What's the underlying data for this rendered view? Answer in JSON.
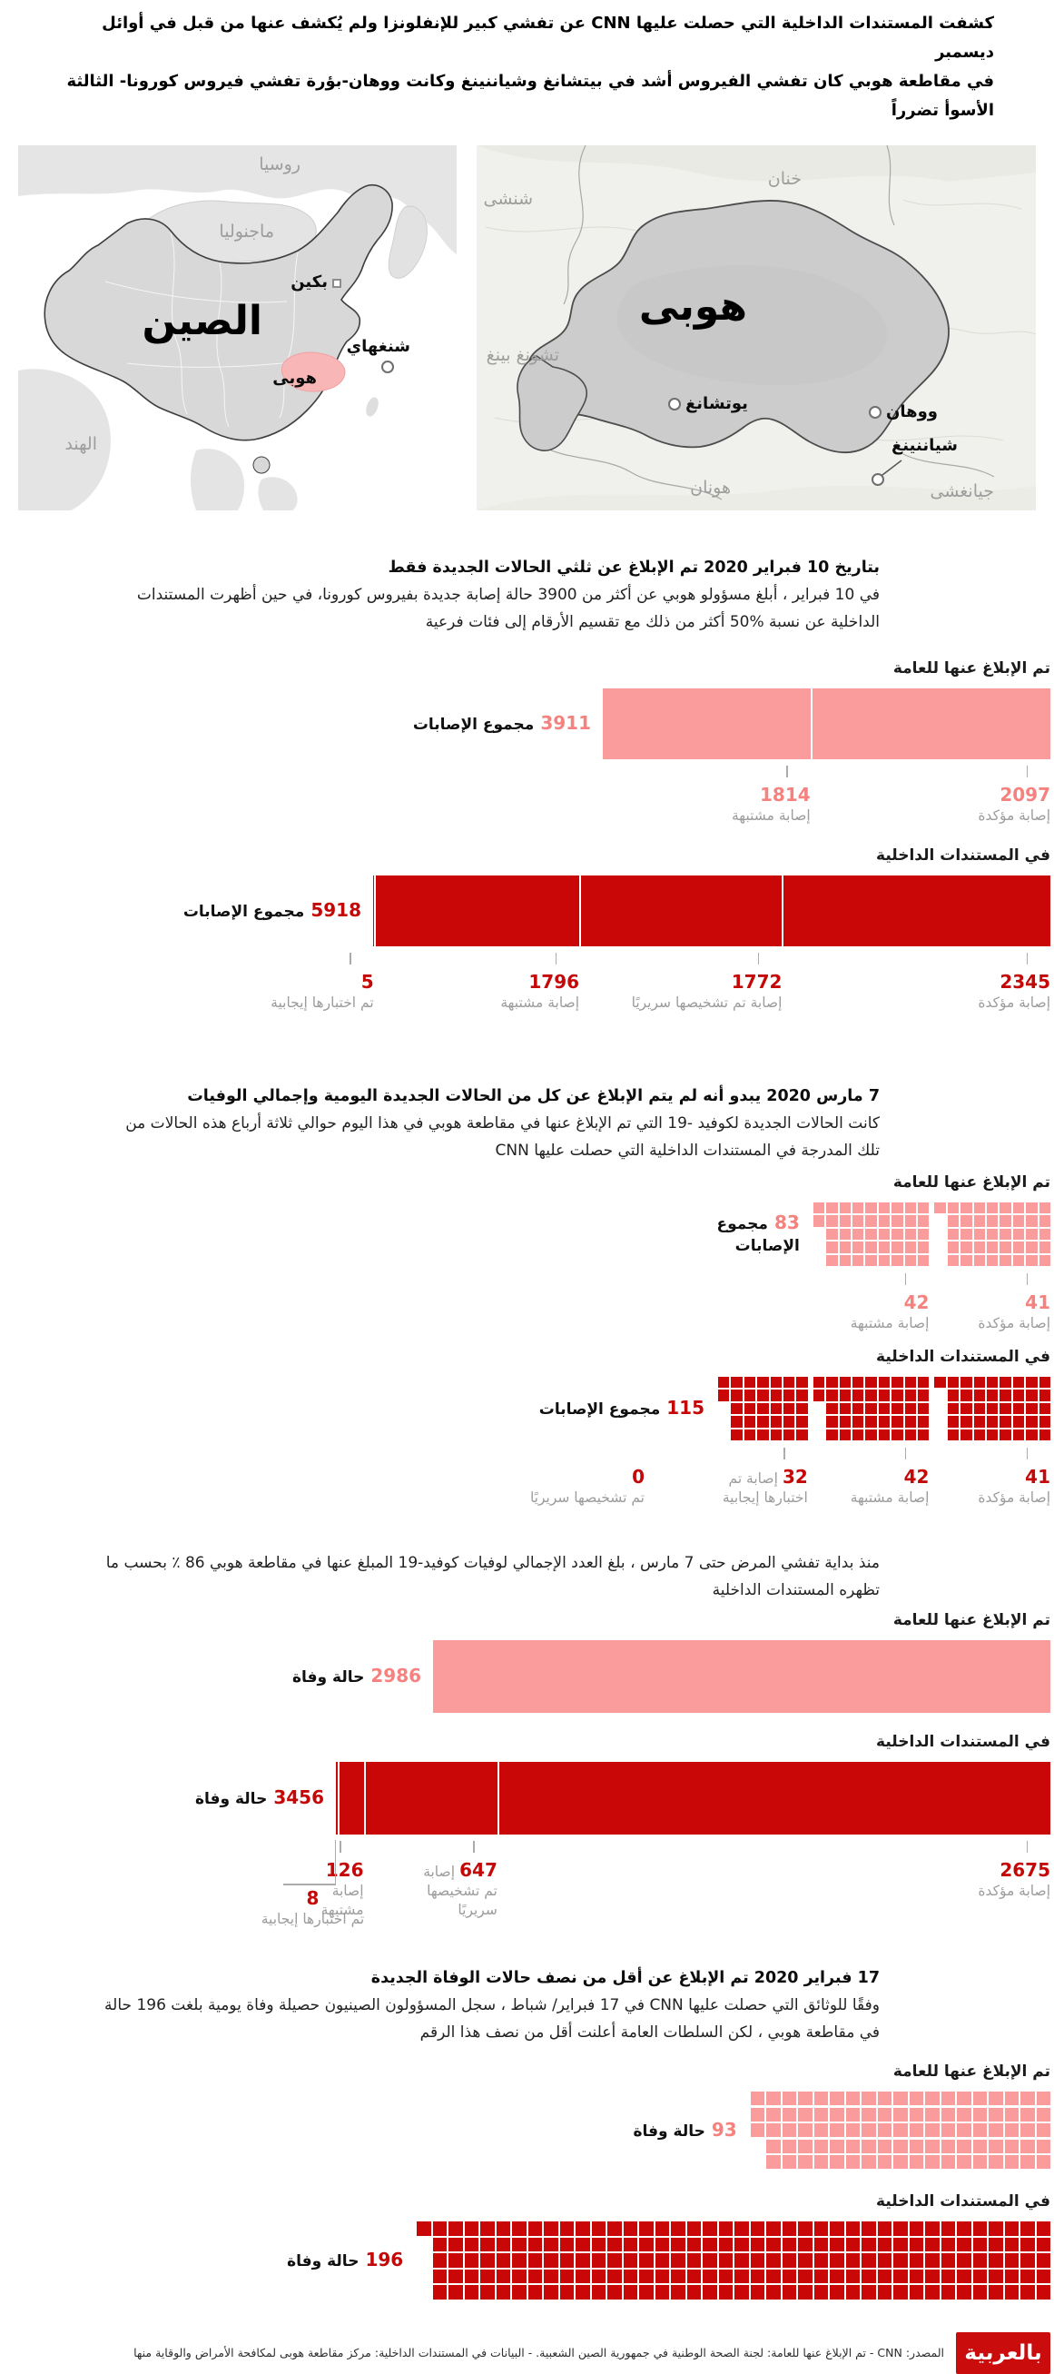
{
  "header": {
    "line1": "كشفت المستندات الداخلية التي حصلت عليها CNN عن تفشي كبير للإنفلونزا ولم يُكشف عنها من قبل في أوائل ديسمبر",
    "line2": "في مقاطعة هوبي كان تفشي الفيروس أشد في بيتشانغ وشياننينغ وكانت ووهان-بؤرة تفشي فيروس كورونا- الثالثة الأسوأ تضرراً"
  },
  "maps": {
    "china": {
      "title": "الصين",
      "region_label": "هوبى",
      "countries": [
        {
          "name": "روسيا"
        },
        {
          "name": "ماجنوليا"
        },
        {
          "name": "الهند"
        }
      ],
      "cities": [
        {
          "name": "بكين"
        },
        {
          "name": "شنغهاي"
        }
      ]
    },
    "hubei": {
      "title": "هوبى",
      "neighbors": [
        {
          "name": "شنشى"
        },
        {
          "name": "خنان"
        },
        {
          "name": "تشونغ بينغ"
        },
        {
          "name": "هونان"
        },
        {
          "name": "جيانغشى"
        }
      ],
      "cities": [
        {
          "name": "يوتشانغ"
        },
        {
          "name": "ووهان"
        },
        {
          "name": "شياننينغ"
        }
      ]
    }
  },
  "sections": [
    {
      "heading": "بتاريخ 10 فبراير 2020 تم الإبلاغ عن ثلثي الحالات الجديدة فقط",
      "body": "في 10 فبراير ، أبلغ مسؤولو هوبي عن أكثر من 3900 حالة إصابة جديدة بفيروس كورونا، في حين أظهرت المستندات الداخلية عن نسبة %50 أكثر من ذلك مع تقسيم الأرقام إلى فئات فرعية"
    },
    {
      "heading": "7 مارس 2020 يبدو أنه لم يتم الإبلاغ عن كل من الحالات الجديدة اليومية وإجمالي الوفيات",
      "body": "كانت الحالات الجديدة لكوفيد -19 التي تم الإبلاغ عنها في مقاطعة هوبي في هذا اليوم حوالي ثلاثة أرباع هذه الحالات من تلك المدرجة في المستندات الداخلية التي حصلت عليها CNN"
    },
    {
      "heading": "",
      "body": "منذ بداية تفشي المرض حتى 7 مارس ، بلغ العدد الإجمالي لوفيات كوفيد-19 المبلغ عنها في مقاطعة هوبي 86 ٪ بحسب ما تظهره المستندات الداخلية"
    },
    {
      "heading": "17 فبراير 2020 تم الإبلاغ عن أقل من نصف حالات الوفاة الجديدة",
      "body": "وفقًا للوثائق التي حصلت عليها CNN في 17 فبراير/ شباط ، سجل المسؤولون الصينيون حصيلة وفاة يومية بلغت 196 حالة في مقاطعة هوبي ، لكن السلطات العامة أعلنت أقل من نصف هذا الرقم"
    }
  ],
  "chart_data": [
    {
      "type": "bar",
      "date": "10 فبراير 2020",
      "palette": "pink",
      "title": "تم الإبلاغ عنها للعامة",
      "total": {
        "value": 3911,
        "label": "مجموع الإصابات"
      },
      "scale_max": 5918,
      "segments": [
        {
          "value": 2097,
          "label": "إصابة مؤكدة"
        },
        {
          "value": 1814,
          "label": "إصابة مشتبهة"
        }
      ]
    },
    {
      "type": "bar",
      "date": "10 فبراير 2020",
      "palette": "red",
      "title": "في المستندات الداخلية",
      "total": {
        "value": 5918,
        "label": "مجموع الإصابات"
      },
      "scale_max": 5918,
      "segments": [
        {
          "value": 2345,
          "label": "إصابة مؤكدة"
        },
        {
          "value": 1772,
          "label": "إصابة تم تشخيصها سريريًا"
        },
        {
          "value": 1796,
          "label": "إصابة مشتبهة"
        },
        {
          "value": 5,
          "label": "تم اختبارها إيجابية"
        }
      ]
    },
    {
      "type": "waffle",
      "date": "7 مارس 2020",
      "palette": "pink",
      "title": "تم الإبلاغ عنها للعامة",
      "total": {
        "value": 83,
        "label": "مجموع الإصابات"
      },
      "segments": [
        {
          "value": 41,
          "label": "إصابة مؤكدة"
        },
        {
          "value": 42,
          "label": "إصابة مشتبهة"
        }
      ]
    },
    {
      "type": "waffle",
      "date": "7 مارس 2020",
      "palette": "red",
      "title": "في المستندات الداخلية",
      "total": {
        "value": 115,
        "label": "مجموع الإصابات"
      },
      "segments": [
        {
          "value": 41,
          "label": "إصابة مؤكدة"
        },
        {
          "value": 42,
          "label": "إصابة مشتبهة"
        },
        {
          "value": 32,
          "label": "إصابة تم اختبارها إيجابية"
        },
        {
          "value": 0,
          "label": "تم تشخيصها سريريًا"
        }
      ]
    },
    {
      "type": "bar",
      "date": "حتى 7 مارس",
      "palette": "pink",
      "title": "تم الإبلاغ عنها للعامة",
      "total": {
        "value": 2986,
        "label": "حالة وفاة"
      },
      "scale_max": 3456,
      "hide_ticks": true,
      "segments": [
        {
          "value": 2986,
          "label": ""
        }
      ]
    },
    {
      "type": "bar",
      "date": "حتى 7 مارس",
      "palette": "red",
      "title": "في المستندات الداخلية",
      "total": {
        "value": 3456,
        "label": "حالة وفاة"
      },
      "scale_max": 3456,
      "segments": [
        {
          "value": 2675,
          "label": "إصابة مؤكدة"
        },
        {
          "value": 647,
          "label": "إصابة تم تشخيصها سريريًا"
        },
        {
          "value": 126,
          "label": "إصابة مشتبهة"
        },
        {
          "value": 8,
          "label": "تم اختبارها إيجابية",
          "connector": "elbow"
        }
      ]
    },
    {
      "type": "waffle",
      "date": "17 فبراير 2020",
      "palette": "pink",
      "title": "تم الإبلاغ عنها للعامة",
      "total": {
        "value": 93,
        "label": "حالة وفاة"
      },
      "hide_ticks": true,
      "segments": [
        {
          "value": 93,
          "label": ""
        }
      ]
    },
    {
      "type": "waffle",
      "date": "17 فبراير 2020",
      "palette": "red",
      "title": "في المستندات الداخلية",
      "total": {
        "value": 196,
        "label": "حالة وفاة"
      },
      "hide_ticks": true,
      "segments": [
        {
          "value": 196,
          "label": ""
        }
      ]
    }
  ],
  "footer": {
    "source": "المصدر: CNN - تم الإبلاغ عنها للعامة: لجنة الصحة الوطنية في جمهورية الصين الشعبية. - البيانات في المستندات الداخلية: مركز مقاطعة هوبى لمكافحة الأمراض والوقاية منها",
    "logo": "بالعربية"
  },
  "colors": {
    "pink": "#FB9C9C",
    "pink_num": "#F5827E",
    "red": "#C90707",
    "red_num": "#C40808",
    "hubei_pink": "#F8B6B6",
    "tick_text": "#9C9C9C",
    "tick_line": "#ABABAB"
  }
}
